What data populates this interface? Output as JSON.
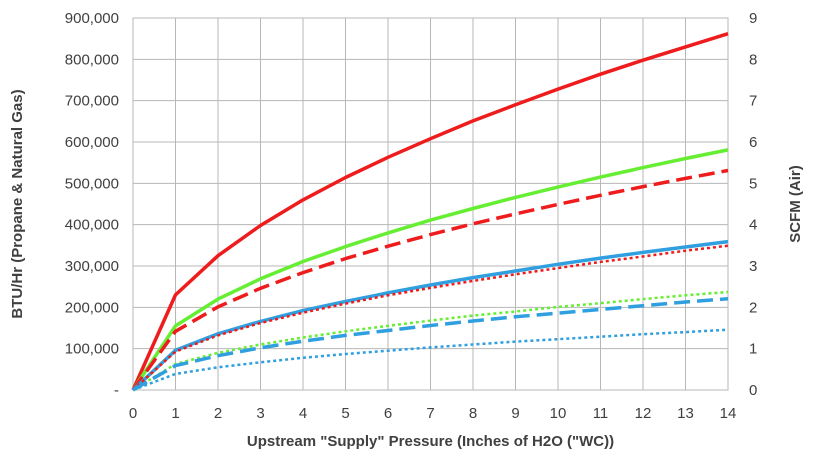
{
  "chart_data": {
    "type": "line",
    "title": "",
    "xlabel": "Upstream \"Supply\" Pressure (Inches of H2O (\"WC))",
    "ylabel": "BTU/Hr (Propane & Natural Gas)",
    "y2label": "SCFM (Air)",
    "xlim": [
      0,
      14
    ],
    "ylim": [
      0,
      900000
    ],
    "y2lim": [
      0,
      9
    ],
    "grid": true,
    "legend": "none",
    "xticks": [
      "0",
      "1",
      "2",
      "3",
      "4",
      "5",
      "6",
      "7",
      "8",
      "9",
      "10",
      "11",
      "12",
      "13",
      "14"
    ],
    "yticks": [
      "-",
      "100,000",
      "200,000",
      "300,000",
      "400,000",
      "500,000",
      "600,000",
      "700,000",
      "800,000",
      "900,000"
    ],
    "y2ticks": [
      "0",
      "1",
      "2",
      "3",
      "4",
      "5",
      "6",
      "7",
      "8",
      "9"
    ],
    "series": [
      {
        "color": "#ee1c1c",
        "dash": "solid",
        "x": [
          0,
          1,
          2,
          3,
          4,
          5,
          6,
          7,
          8,
          9,
          10,
          11,
          12,
          13,
          14
        ],
        "values": [
          0,
          230000,
          325000,
          398000,
          460000,
          514000,
          563000,
          608000,
          651000,
          690000,
          728000,
          764000,
          798000,
          830000,
          862000
        ]
      },
      {
        "color": "#66ee33",
        "dash": "solid",
        "x": [
          0,
          1,
          2,
          3,
          4,
          5,
          6,
          7,
          8,
          9,
          10,
          11,
          12,
          13,
          14
        ],
        "values": [
          0,
          155000,
          220000,
          269000,
          311000,
          347000,
          380000,
          411000,
          439000,
          466000,
          491000,
          515000,
          538000,
          560000,
          581000
        ]
      },
      {
        "color": "#ee1c1c",
        "dash": "dashed",
        "x": [
          0,
          1,
          2,
          3,
          4,
          5,
          6,
          7,
          8,
          9,
          10,
          11,
          12,
          13,
          14
        ],
        "values": [
          0,
          142000,
          201000,
          246000,
          284000,
          318000,
          348000,
          376000,
          402000,
          426000,
          449000,
          471000,
          492000,
          512000,
          531000
        ]
      },
      {
        "color": "#2f9fe0",
        "dash": "solid",
        "x": [
          0,
          1,
          2,
          3,
          4,
          5,
          6,
          7,
          8,
          9,
          10,
          11,
          12,
          13,
          14
        ],
        "values": [
          0,
          96000,
          136000,
          166000,
          192000,
          214000,
          235000,
          254000,
          272000,
          288000,
          304000,
          319000,
          333000,
          346000,
          359000
        ]
      },
      {
        "color": "#ee1c1c",
        "dash": "dotted",
        "x": [
          0,
          1,
          2,
          3,
          4,
          5,
          6,
          7,
          8,
          9,
          10,
          11,
          12,
          13,
          14
        ],
        "values": [
          0,
          93000,
          132000,
          162000,
          187000,
          209000,
          229000,
          247000,
          264000,
          280000,
          295000,
          310000,
          323000,
          337000,
          349000
        ]
      },
      {
        "color": "#66ee33",
        "dash": "dotted",
        "x": [
          0,
          1,
          2,
          3,
          4,
          5,
          6,
          7,
          8,
          9,
          10,
          11,
          12,
          13,
          14
        ],
        "values": [
          0,
          63000,
          90000,
          110000,
          127000,
          142000,
          155000,
          168000,
          180000,
          190000,
          201000,
          210000,
          220000,
          229000,
          237000
        ]
      },
      {
        "color": "#2f9fe0",
        "dash": "dashed",
        "x": [
          0,
          1,
          2,
          3,
          4,
          5,
          6,
          7,
          8,
          9,
          10,
          11,
          12,
          13,
          14
        ],
        "values": [
          0,
          59000,
          83000,
          102000,
          118000,
          132000,
          144000,
          156000,
          167000,
          177000,
          186000,
          195000,
          204000,
          213000,
          221000
        ]
      },
      {
        "color": "#2f9fe0",
        "dash": "dotted",
        "x": [
          0,
          1,
          2,
          3,
          4,
          5,
          6,
          7,
          8,
          9,
          10,
          11,
          12,
          13,
          14
        ],
        "values": [
          0,
          39000,
          55000,
          67000,
          78000,
          87000,
          95000,
          103000,
          110000,
          117000,
          123000,
          129000,
          135000,
          140000,
          146000
        ]
      }
    ]
  }
}
